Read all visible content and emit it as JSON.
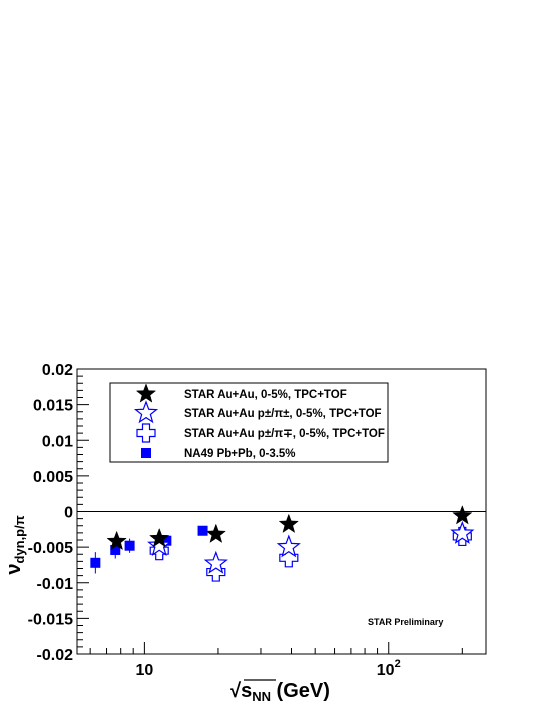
{
  "chart_data": {
    "type": "scatter",
    "title": "",
    "xlabel": {
      "base": "√s",
      "sub": "NN",
      "rest": " (GeV)"
    },
    "ylabel": {
      "base": "ν",
      "sub": "dyn,p/π"
    },
    "x_scale": "log",
    "xlim": [
      5.3,
      250
    ],
    "ylim": [
      -0.02,
      0.02
    ],
    "x_ticks": [
      {
        "value": 10,
        "label": "10"
      },
      {
        "value": 100,
        "label": "10",
        "sup": "2"
      }
    ],
    "y_ticks": [
      {
        "value": 0.02,
        "label": "0.02"
      },
      {
        "value": 0.015,
        "label": "0.015"
      },
      {
        "value": 0.01,
        "label": "0.01"
      },
      {
        "value": 0.005,
        "label": "0.005"
      },
      {
        "value": 0,
        "label": "0"
      },
      {
        "value": -0.005,
        "label": "-0.005"
      },
      {
        "value": -0.01,
        "label": "-0.01"
      },
      {
        "value": -0.015,
        "label": "-0.015"
      },
      {
        "value": -0.02,
        "label": "-0.02"
      }
    ],
    "reference_line_y": 0,
    "annotation": "STAR Preliminary",
    "legend_position": "top-left",
    "series": [
      {
        "name": "STAR Au+Au, 0-5%, TPC+TOF",
        "marker": "star-filled",
        "color": "#000000",
        "points": [
          {
            "x": 7.7,
            "y": -0.0042,
            "err": 0.0007
          },
          {
            "x": 11.5,
            "y": -0.0038,
            "err": 0.0005
          },
          {
            "x": 19.6,
            "y": -0.0032,
            "err": 0.0003
          },
          {
            "x": 39,
            "y": -0.0018,
            "err": 0.0002
          },
          {
            "x": 200,
            "y": -0.0006,
            "err": 0.0002
          }
        ]
      },
      {
        "name": "STAR Au+Au p±/π±, 0-5%, TPC+TOF",
        "marker": "star-open",
        "color": "#0000ff",
        "points": [
          {
            "x": 11.5,
            "y": -0.0048,
            "err": 0.0005
          },
          {
            "x": 19.6,
            "y": -0.0073,
            "err": 0.0004
          },
          {
            "x": 39,
            "y": -0.005,
            "err": 0.0003
          },
          {
            "x": 200,
            "y": -0.0031,
            "err": 0.0002
          }
        ]
      },
      {
        "name": "STAR Au+Au p±/π∓, 0-5%, TPC+TOF",
        "marker": "cross-open",
        "color": "#0000ff",
        "points": [
          {
            "x": 11.5,
            "y": -0.0055,
            "err": 0.0005
          },
          {
            "x": 19.6,
            "y": -0.0085,
            "err": 0.0004
          },
          {
            "x": 39,
            "y": -0.0065,
            "err": 0.0003
          },
          {
            "x": 200,
            "y": -0.0035,
            "err": 0.0002
          }
        ]
      },
      {
        "name": "NA49 Pb+Pb, 0-3.5%",
        "marker": "square-filled",
        "color": "#0000ff",
        "points": [
          {
            "x": 6.3,
            "y": -0.0072,
            "err": 0.0015
          },
          {
            "x": 7.6,
            "y": -0.0054,
            "err": 0.0012
          },
          {
            "x": 8.7,
            "y": -0.0048,
            "err": 0.001
          },
          {
            "x": 12.3,
            "y": -0.0041,
            "err": 0.0008
          },
          {
            "x": 17.3,
            "y": -0.0027,
            "err": 0.0004
          }
        ]
      }
    ]
  }
}
